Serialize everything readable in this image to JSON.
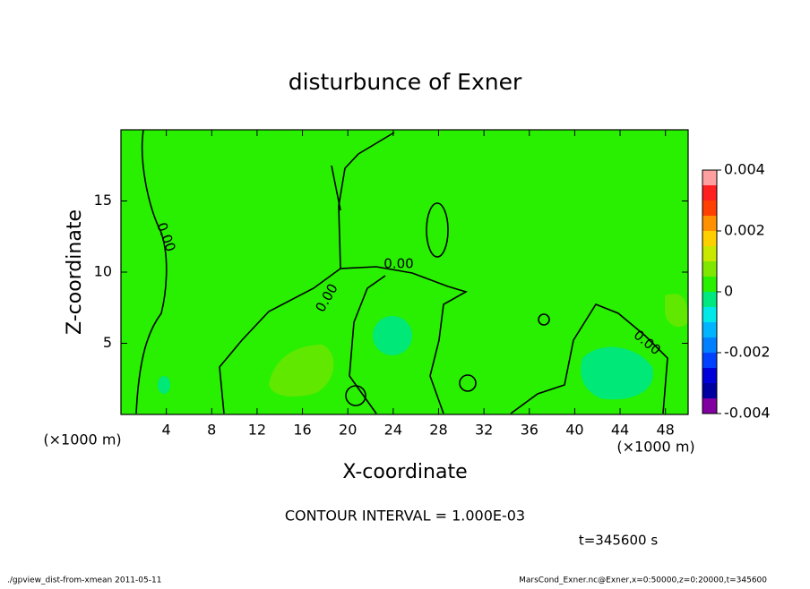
{
  "chart_data": {
    "type": "contour",
    "title": "disturbunce of Exner",
    "xlabel": "X-coordinate",
    "ylabel": "Z-coordinate",
    "x_unit": "(×1000 m)",
    "y_unit": "(×1000 m)",
    "xlim": [
      0,
      50
    ],
    "xticks": [
      4,
      8,
      12,
      16,
      20,
      24,
      28,
      32,
      36,
      40,
      44,
      48
    ],
    "ylim": [
      0,
      20
    ],
    "yticks": [
      5,
      10,
      15
    ],
    "colorbar": {
      "lim": [
        -0.004,
        0.004
      ],
      "ticks": [
        -0.004,
        -0.002,
        0,
        0.002,
        0.004
      ],
      "levels": [
        -0.004,
        -0.0035,
        -0.003,
        -0.0025,
        -0.002,
        -0.0015,
        -0.001,
        -0.0005,
        0,
        0.0005,
        0.001,
        0.0015,
        0.002,
        0.0025,
        0.003,
        0.0035,
        0.004
      ],
      "colors": [
        "#8000a0",
        "#0000a0",
        "#0000d8",
        "#0040ff",
        "#0080ff",
        "#00b4ff",
        "#00e8e8",
        "#00e880",
        "#28f000",
        "#80e800",
        "#c8e800",
        "#ffd000",
        "#ff9000",
        "#ff4000",
        "#ff2020",
        "#ffa0a0"
      ]
    },
    "contour_labels": [
      "0.00",
      "0.00",
      "0.00",
      "0.00"
    ],
    "contour_interval": "CONTOUR INTERVAL = 1.000E-03",
    "time_label": "t=345600 s",
    "footer_left": "./gpview_dist-from-xmean  2011-05-11",
    "footer_right": "MarsCond_Exner.nc@Exner,x=0:50000,z=0:20000,t=345600"
  }
}
